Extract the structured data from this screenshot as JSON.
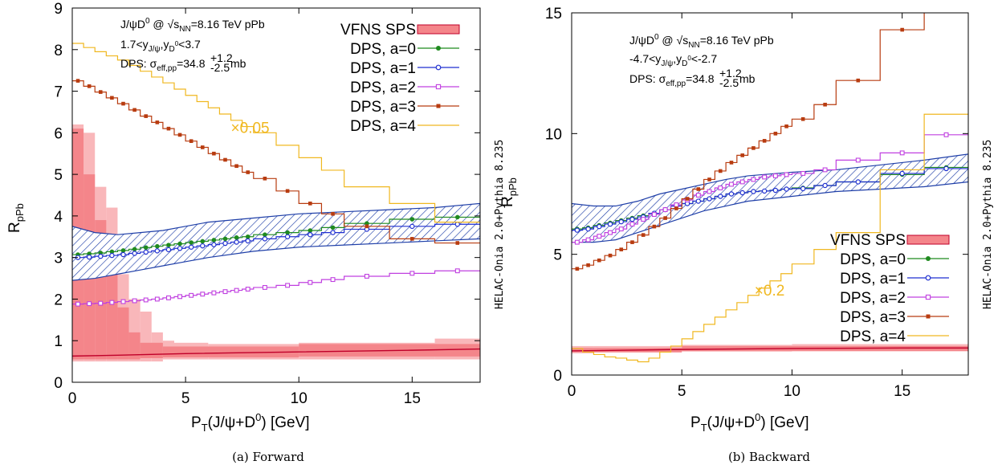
{
  "colors": {
    "sps_fill": "#f4858a",
    "sps_light": "#f9b7ba",
    "sps_line": "#c0002a",
    "hatch": "#1f3fa8",
    "a0": "#1f8a1f",
    "a1": "#1f2fd0",
    "a2": "#c040e0",
    "a3": "#b83c10",
    "a4": "#f0b820"
  },
  "chart_data": [
    {
      "type": "line",
      "caption": "(a) Forward",
      "xlabel_main": "P",
      "xlabel_sub": "T",
      "xlabel_rest": "(J/ψ+D",
      "xlabel_sup": "0",
      "xlabel_end": ") [GeV]",
      "ylabel_main": "R",
      "ylabel_sub": "pPb",
      "xlim": [
        0,
        18
      ],
      "ylim": [
        0,
        9
      ],
      "xticks": [
        0,
        5,
        10,
        15
      ],
      "yticks": [
        0,
        1,
        2,
        3,
        4,
        5,
        6,
        7,
        8,
        9
      ],
      "ann_line1": {
        "a": "J/ψD",
        "b": "0",
        "c": " @ √s",
        "d": "NN",
        "e": "=8.16 TeV pPb"
      },
      "ann_line2": {
        "a": "1.7<y",
        "b": "J/ψ",
        "c": ",y",
        "d": "D",
        "e": "0",
        "f": "<3.7"
      },
      "ann_line3": {
        "a": "DPS: σ",
        "b": "eff,pp",
        "c": "=34.8",
        "up": "+1.2",
        "dn": "-2.5",
        "d": "mb"
      },
      "scale_note": "×0.05",
      "scale_note_pos": [
        7.0,
        6.0
      ],
      "watermark": "HELAC-Onia 2.0+Pythia 8.235",
      "legend": [
        "VFNS SPS",
        "DPS, a=0",
        "DPS, a=1",
        "DPS, a=2",
        "DPS, a=3",
        "DPS, a=4"
      ],
      "legend_position": "top-right",
      "sps_central": {
        "x": [
          0,
          2,
          5,
          10,
          15,
          18
        ],
        "y": [
          0.63,
          0.65,
          0.69,
          0.73,
          0.77,
          0.8
        ]
      },
      "sps_light_bins": [
        {
          "x": [
            0,
            0.5
          ],
          "low": 0.5,
          "high": 6.2
        },
        {
          "x": [
            0.5,
            1
          ],
          "low": 0.5,
          "high": 6.0
        },
        {
          "x": [
            1,
            1.5
          ],
          "low": 0.5,
          "high": 4.7
        },
        {
          "x": [
            1.5,
            2
          ],
          "low": 0.5,
          "high": 4.2
        },
        {
          "x": [
            2,
            2.5
          ],
          "low": 0.5,
          "high": 2.6
        },
        {
          "x": [
            2.5,
            3
          ],
          "low": 0.5,
          "high": 2.0
        },
        {
          "x": [
            3,
            3.5
          ],
          "low": 0.5,
          "high": 1.7
        },
        {
          "x": [
            3.5,
            4
          ],
          "low": 0.5,
          "high": 1.2
        },
        {
          "x": [
            4,
            4.5
          ],
          "low": 0.55,
          "high": 1.0
        },
        {
          "x": [
            4.5,
            6
          ],
          "low": 0.55,
          "high": 0.95
        },
        {
          "x": [
            6,
            10
          ],
          "low": 0.55,
          "high": 0.92
        },
        {
          "x": [
            10,
            16
          ],
          "low": 0.55,
          "high": 0.95
        },
        {
          "x": [
            16,
            18
          ],
          "low": 0.55,
          "high": 1.05
        }
      ],
      "sps_dark_bins": [
        {
          "x": [
            0,
            0.5
          ],
          "low": 0.55,
          "high": 6.1
        },
        {
          "x": [
            0.5,
            1
          ],
          "low": 0.55,
          "high": 5.0
        },
        {
          "x": [
            1,
            1.5
          ],
          "low": 0.55,
          "high": 3.9
        },
        {
          "x": [
            1.5,
            2
          ],
          "low": 0.55,
          "high": 3.2
        },
        {
          "x": [
            2,
            2.5
          ],
          "low": 0.55,
          "high": 1.8
        },
        {
          "x": [
            2.5,
            3
          ],
          "low": 0.55,
          "high": 1.2
        },
        {
          "x": [
            3,
            4
          ],
          "low": 0.58,
          "high": 0.95
        },
        {
          "x": [
            4,
            10
          ],
          "low": 0.6,
          "high": 0.86
        },
        {
          "x": [
            10,
            18
          ],
          "low": 0.62,
          "high": 0.92
        }
      ],
      "hatch_band": {
        "x": [
          0,
          1,
          2,
          3,
          4,
          5,
          6,
          8,
          10,
          12,
          14,
          16,
          18
        ],
        "low": [
          2.45,
          2.5,
          2.6,
          2.7,
          2.8,
          2.9,
          3.0,
          3.15,
          3.25,
          3.3,
          3.35,
          3.4,
          3.45
        ],
        "high": [
          3.75,
          3.6,
          3.55,
          3.6,
          3.65,
          3.75,
          3.85,
          3.95,
          4.05,
          4.1,
          4.15,
          4.2,
          4.3
        ]
      },
      "series": [
        {
          "name": "DPS, a=0",
          "color_key": "a0",
          "marker": "dot",
          "edges": [
            0,
            0.5,
            1,
            1.5,
            2,
            2.5,
            3,
            3.5,
            4,
            4.5,
            5,
            5.5,
            6,
            6.5,
            7,
            7.5,
            8,
            9,
            10,
            11,
            12,
            14,
            16,
            18
          ],
          "y": [
            3.07,
            3.09,
            3.11,
            3.14,
            3.17,
            3.2,
            3.24,
            3.27,
            3.3,
            3.33,
            3.36,
            3.39,
            3.42,
            3.45,
            3.48,
            3.5,
            3.55,
            3.6,
            3.65,
            3.72,
            3.82,
            3.92,
            3.97
          ]
        },
        {
          "name": "DPS, a=1",
          "color_key": "a1",
          "marker": "circle",
          "edges": [
            0,
            0.5,
            1,
            1.5,
            2,
            2.5,
            3,
            3.5,
            4,
            4.5,
            5,
            5.5,
            6,
            6.5,
            7,
            7.5,
            8,
            9,
            10,
            11,
            12,
            14,
            16,
            18
          ],
          "y": [
            3.0,
            3.01,
            3.03,
            3.05,
            3.07,
            3.1,
            3.13,
            3.16,
            3.19,
            3.22,
            3.25,
            3.28,
            3.31,
            3.34,
            3.37,
            3.4,
            3.45,
            3.5,
            3.55,
            3.6,
            3.68,
            3.75,
            3.8
          ]
        },
        {
          "name": "DPS, a=2",
          "color_key": "a2",
          "marker": "square",
          "edges": [
            0,
            0.5,
            1,
            1.5,
            2,
            2.5,
            3,
            3.5,
            4,
            4.5,
            5,
            5.5,
            6,
            6.5,
            7,
            7.5,
            8,
            9,
            10,
            11,
            12,
            14,
            16,
            18
          ],
          "y": [
            1.88,
            1.89,
            1.9,
            1.92,
            1.94,
            1.96,
            1.98,
            2.0,
            2.03,
            2.06,
            2.09,
            2.12,
            2.15,
            2.18,
            2.21,
            2.24,
            2.28,
            2.33,
            2.4,
            2.47,
            2.55,
            2.62,
            2.68
          ]
        },
        {
          "name": "DPS, a=3",
          "color_key": "a3",
          "marker": "filled-square",
          "edges": [
            0,
            0.5,
            1,
            1.5,
            2,
            2.5,
            3,
            3.5,
            4,
            4.5,
            5,
            5.5,
            6,
            6.5,
            7,
            7.5,
            8,
            9,
            10,
            11,
            12,
            14,
            16,
            18
          ],
          "y": [
            7.25,
            7.12,
            6.98,
            6.84,
            6.7,
            6.55,
            6.4,
            6.25,
            6.1,
            5.95,
            5.8,
            5.65,
            5.5,
            5.35,
            5.2,
            5.05,
            4.9,
            4.6,
            4.3,
            4.05,
            3.75,
            3.45,
            3.35
          ]
        },
        {
          "name": "DPS, a=4",
          "color_key": "a4",
          "marker": "none",
          "edges": [
            0,
            0.5,
            1,
            1.5,
            2,
            2.5,
            3,
            3.5,
            4,
            4.5,
            5,
            5.5,
            6,
            6.5,
            7,
            7.5,
            8,
            9,
            10,
            11,
            12,
            14,
            16,
            18
          ],
          "y": [
            8.15,
            8.05,
            7.95,
            7.85,
            7.75,
            7.62,
            7.48,
            7.34,
            7.2,
            7.05,
            6.9,
            6.75,
            6.6,
            6.45,
            6.3,
            6.15,
            6.0,
            5.7,
            5.4,
            5.1,
            4.7,
            4.3,
            3.85
          ]
        }
      ]
    },
    {
      "type": "line",
      "caption": "(b) Backward",
      "xlabel_main": "P",
      "xlabel_sub": "T",
      "xlabel_rest": "(J/ψ+D",
      "xlabel_sup": "0",
      "xlabel_end": ") [GeV]",
      "ylabel_main": "R",
      "ylabel_sub": "pPb",
      "xlim": [
        0,
        18
      ],
      "ylim": [
        0,
        15
      ],
      "xticks": [
        0,
        5,
        10,
        15
      ],
      "yticks": [
        0,
        5,
        10,
        15
      ],
      "ann_line1": {
        "a": "J/ψD",
        "b": "0",
        "c": " @ √s",
        "d": "NN",
        "e": "=8.16 TeV pPb"
      },
      "ann_line2": {
        "a": "-4.7<y",
        "b": "J/ψ",
        "c": ",y",
        "d": "D",
        "e": "0",
        "f": "<-2.7"
      },
      "ann_line3": {
        "a": "DPS: σ",
        "b": "eff,pp",
        "c": "=34.8",
        "up": "+1.2",
        "dn": "-2.5",
        "d": "mb"
      },
      "scale_note": "×0.2",
      "scale_note_pos": [
        8.3,
        3.3
      ],
      "watermark": "HELAC-Onia 2.0+Pythia 8.235",
      "legend": [
        "VFNS SPS",
        "DPS, a=0",
        "DPS, a=1",
        "DPS, a=2",
        "DPS, a=3",
        "DPS, a=4"
      ],
      "legend_position": "bottom-right",
      "sps_central": {
        "x": [
          0,
          5,
          10,
          15,
          18
        ],
        "y": [
          1.0,
          1.06,
          1.1,
          1.12,
          1.12
        ]
      },
      "sps_light_bins": [
        {
          "x": [
            0,
            1
          ],
          "low": 0.9,
          "high": 1.2
        },
        {
          "x": [
            1,
            5
          ],
          "low": 0.93,
          "high": 1.2
        },
        {
          "x": [
            5,
            10
          ],
          "low": 0.97,
          "high": 1.25
        },
        {
          "x": [
            10,
            18
          ],
          "low": 0.98,
          "high": 1.28
        }
      ],
      "sps_dark_bins": [
        {
          "x": [
            0,
            5
          ],
          "low": 0.95,
          "high": 1.12
        },
        {
          "x": [
            5,
            18
          ],
          "low": 1.0,
          "high": 1.2
        }
      ],
      "hatch_band": {
        "x": [
          0,
          1,
          2,
          3,
          4,
          5,
          6,
          7,
          8,
          10,
          12,
          14,
          16,
          18
        ],
        "low": [
          5.5,
          5.5,
          5.6,
          5.9,
          6.2,
          6.5,
          6.8,
          7.0,
          7.2,
          7.4,
          7.6,
          7.7,
          7.8,
          8.0
        ],
        "high": [
          7.1,
          7.0,
          7.0,
          7.2,
          7.5,
          7.7,
          7.9,
          8.1,
          8.25,
          8.4,
          8.5,
          8.7,
          8.9,
          9.15
        ]
      },
      "series": [
        {
          "name": "DPS, a=0",
          "color_key": "a0",
          "marker": "dot",
          "edges": [
            0,
            0.5,
            1,
            1.5,
            2,
            2.5,
            3,
            3.5,
            4,
            4.5,
            5,
            5.5,
            6,
            6.5,
            7,
            7.5,
            8,
            8.5,
            9,
            9.5,
            10,
            11,
            12,
            14,
            16,
            18
          ],
          "y": [
            6.05,
            6.1,
            6.2,
            6.3,
            6.4,
            6.5,
            6.6,
            6.7,
            6.85,
            7.0,
            7.1,
            7.2,
            7.3,
            7.4,
            7.5,
            7.55,
            7.6,
            7.62,
            7.65,
            7.7,
            7.75,
            7.85,
            8.0,
            8.3,
            8.6
          ]
        },
        {
          "name": "DPS, a=1",
          "color_key": "a1",
          "marker": "circle",
          "edges": [
            0,
            0.5,
            1,
            1.5,
            2,
            2.5,
            3,
            3.5,
            4,
            4.5,
            5,
            5.5,
            6,
            6.5,
            7,
            7.5,
            8,
            8.5,
            9,
            9.5,
            10,
            11,
            12,
            14,
            16,
            18
          ],
          "y": [
            6.0,
            6.05,
            6.15,
            6.25,
            6.35,
            6.45,
            6.55,
            6.7,
            6.85,
            7.0,
            7.1,
            7.2,
            7.3,
            7.4,
            7.5,
            7.55,
            7.6,
            7.62,
            7.65,
            7.7,
            7.72,
            7.85,
            8.0,
            8.35,
            8.55
          ]
        },
        {
          "name": "DPS, a=2",
          "color_key": "a2",
          "marker": "square",
          "edges": [
            0,
            0.5,
            1,
            1.5,
            2,
            2.5,
            3,
            3.5,
            4,
            4.5,
            5,
            5.5,
            6,
            6.5,
            7,
            7.5,
            8,
            8.5,
            9,
            9.5,
            10,
            11,
            12,
            14,
            16,
            18
          ],
          "y": [
            5.5,
            5.6,
            5.75,
            5.9,
            6.05,
            6.25,
            6.45,
            6.65,
            6.85,
            7.05,
            7.25,
            7.45,
            7.6,
            7.75,
            7.9,
            8.0,
            8.1,
            8.2,
            8.25,
            8.3,
            8.35,
            8.5,
            8.9,
            9.2,
            9.95
          ]
        },
        {
          "name": "DPS, a=3",
          "color_key": "a3",
          "marker": "filled-square",
          "edges": [
            0,
            0.5,
            1,
            1.5,
            2,
            2.5,
            3,
            3.5,
            4,
            4.5,
            5,
            5.5,
            6,
            6.5,
            7,
            7.5,
            8,
            8.5,
            9,
            9.5,
            10,
            11,
            12,
            14,
            16,
            18
          ],
          "y": [
            4.4,
            4.55,
            4.75,
            4.95,
            5.2,
            5.5,
            5.8,
            6.15,
            6.5,
            6.9,
            7.3,
            7.7,
            8.1,
            8.45,
            8.8,
            9.1,
            9.4,
            9.7,
            10.0,
            10.3,
            10.6,
            11.2,
            12.2,
            14.3,
            16.5
          ]
        },
        {
          "name": "DPS, a=4",
          "color_key": "a4",
          "marker": "none",
          "edges": [
            0,
            0.5,
            1,
            1.5,
            2,
            2.5,
            3,
            3.5,
            4,
            4.5,
            5,
            5.5,
            6,
            6.5,
            7,
            7.5,
            8,
            8.5,
            9,
            9.5,
            10,
            11,
            12,
            14,
            16,
            18
          ],
          "y": [
            1.1,
            0.95,
            0.85,
            0.75,
            0.7,
            0.62,
            0.55,
            0.7,
            0.95,
            1.2,
            1.5,
            1.8,
            2.1,
            2.4,
            2.7,
            3.0,
            3.3,
            3.6,
            3.9,
            4.2,
            4.6,
            5.2,
            5.9,
            8.5,
            10.8
          ]
        }
      ]
    }
  ]
}
